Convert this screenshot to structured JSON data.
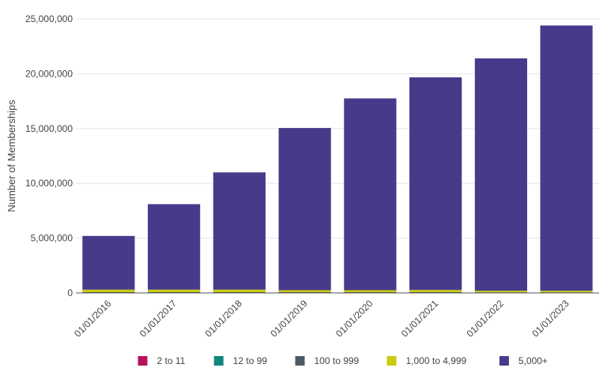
{
  "chart_data": {
    "type": "bar",
    "stacked": true,
    "ylabel": "Number of Memberships",
    "xlabel": "",
    "ylim": [
      0,
      25000000
    ],
    "yticks": [
      0,
      5000000,
      10000000,
      15000000,
      20000000,
      25000000
    ],
    "ytick_labels": [
      "0",
      "5,000,000",
      "10,000,000",
      "15,000,000",
      "20,000,000",
      "25,000,000"
    ],
    "categories": [
      "01/01/2016",
      "01/01/2017",
      "01/01/2018",
      "01/01/2019",
      "01/01/2020",
      "01/01/2021",
      "01/01/2022",
      "01/01/2023"
    ],
    "series": [
      {
        "name": "2 to 11",
        "color": "#b5135c",
        "values": [
          2000,
          2000,
          2000,
          2000,
          2000,
          2000,
          2000,
          2000
        ]
      },
      {
        "name": "12 to 99",
        "color": "#12857b",
        "values": [
          10000,
          10000,
          10000,
          10000,
          10000,
          10000,
          10000,
          10000
        ]
      },
      {
        "name": "100 to 999",
        "color": "#4d5965",
        "values": [
          60000,
          60000,
          60000,
          60000,
          60000,
          60000,
          50000,
          50000
        ]
      },
      {
        "name": "1,000 to 4,999",
        "color": "#c8cc0c",
        "values": [
          230000,
          230000,
          230000,
          180000,
          180000,
          200000,
          140000,
          140000
        ]
      },
      {
        "name": "5,000+",
        "color": "#483a8b",
        "values": [
          4900000,
          7800000,
          10700000,
          14800000,
          17500000,
          19400000,
          21200000,
          24200000
        ]
      }
    ],
    "grid": true,
    "legend_position": "bottom"
  }
}
